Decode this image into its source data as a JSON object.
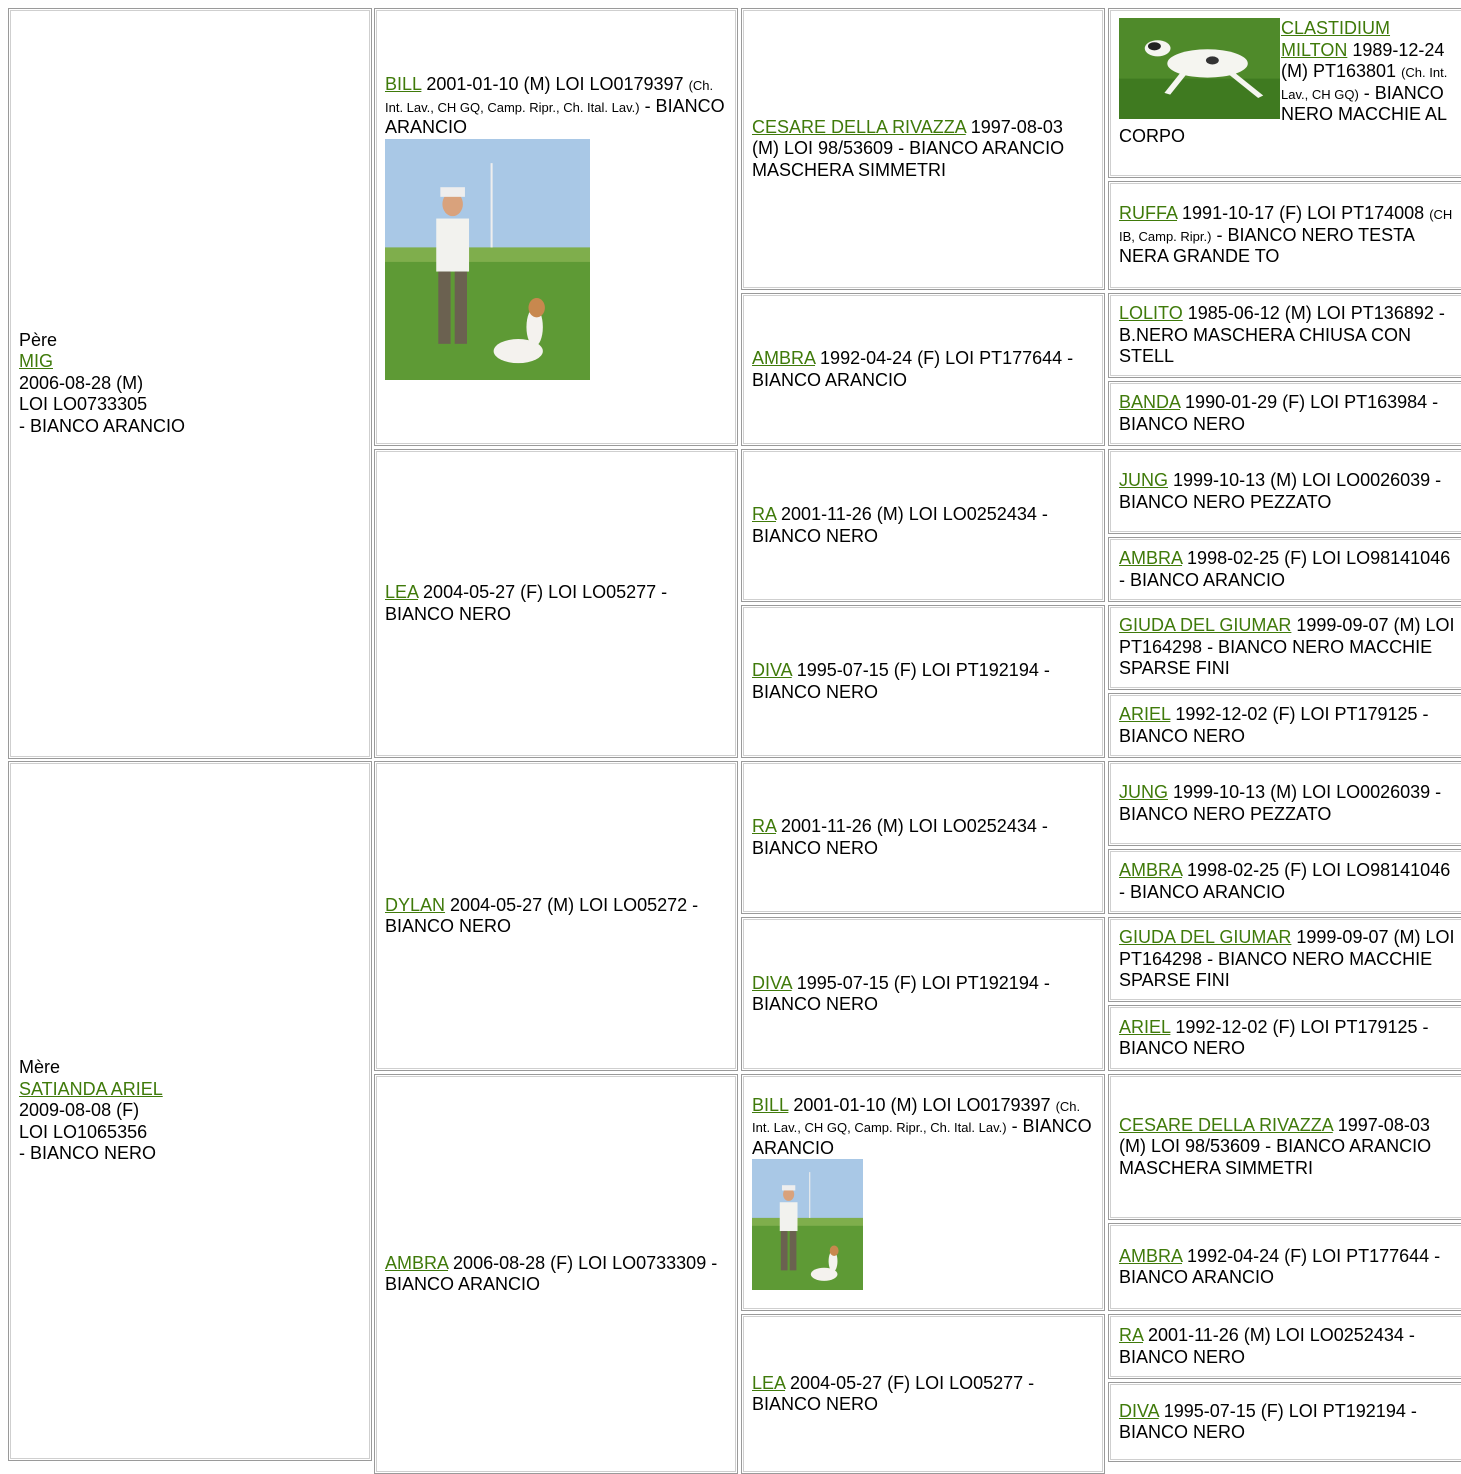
{
  "sire": {
    "label": "Père",
    "name": "MIG",
    "lines": [
      "2006-08-28 (M)",
      "LOI LO0733305",
      "- BIANCO ARANCIO"
    ]
  },
  "dam": {
    "label": "Mère",
    "name": "SATIANDA ARIEL",
    "lines": [
      "2009-08-08 (F)",
      "LOI LO1065356",
      "- BIANCO NERO"
    ]
  },
  "cells": [
    {
      "name": "BILL",
      "text": "2001-01-10 (M) LOI LO0179397",
      "titles": "(Ch. Int. Lav., CH GQ, Camp. Ripr., Ch. Ital. Lav.)",
      "tail": "- BIANCO ARANCIO"
    },
    {
      "name": "LEA",
      "text": "2004-05-27 (F) LOI LO05277 - BIANCO NERO"
    },
    {
      "name": "DYLAN",
      "text": "2004-05-27 (M) LOI LO05272 - BIANCO NERO"
    },
    {
      "name": "AMBRA",
      "text": "2006-08-28 (F) LOI LO0733309 - BIANCO ARANCIO"
    },
    {
      "name": "CESARE DELLA RIVAZZA",
      "text": "1997-08-03 (M) LOI 98/53609 - BIANCO ARANCIO MASCHERA SIMMETRI"
    },
    {
      "name": "AMBRA",
      "text": "1992-04-24 (F) LOI PT177644 - BIANCO ARANCIO"
    },
    {
      "name": "RA",
      "text": "2001-11-26 (M) LOI LO0252434 - BIANCO NERO"
    },
    {
      "name": "DIVA",
      "text": "1995-07-15 (F) LOI PT192194 - BIANCO NERO"
    },
    {
      "name": "RA",
      "text": "2001-11-26 (M) LOI LO0252434 - BIANCO NERO"
    },
    {
      "name": "DIVA",
      "text": "1995-07-15 (F) LOI PT192194 - BIANCO NERO"
    },
    {
      "name": "BILL",
      "text": "2001-01-10 (M) LOI LO0179397",
      "titles": "(Ch. Int. Lav., CH GQ, Camp. Ripr., Ch. Ital. Lav.)",
      "tail": "- BIANCO ARANCIO"
    },
    {
      "name": "LEA",
      "text": "2004-05-27 (F) LOI LO05277 - BIANCO NERO"
    },
    {
      "name": "CLASTIDIUM MILTON",
      "text": "1989-12-24 (M) PT163801",
      "titles": "(Ch. Int. Lav., CH GQ)",
      "tail": "- BIANCO NERO MACCHIE AL CORPO"
    },
    {
      "name": "RUFFA",
      "text": "1991-10-17 (F) LOI PT174008",
      "titles": "(CH IB, Camp. Ripr.)",
      "tail": "- BIANCO NERO TESTA NERA GRANDE TO"
    },
    {
      "name": "LOLITO",
      "text": "1985-06-12 (M) LOI PT136892 - B.NERO MASCHERA CHIUSA CON STELL"
    },
    {
      "name": "BANDA",
      "text": "1990-01-29 (F) LOI PT163984 - BIANCO NERO"
    },
    {
      "name": "JUNG",
      "text": "1999-10-13 (M) LOI LO0026039 - BIANCO NERO PEZZATO"
    },
    {
      "name": "AMBRA",
      "text": "1998-02-25 (F) LOI LO98141046 - BIANCO ARANCIO"
    },
    {
      "name": "GIUDA DEL GIUMAR",
      "text": "1999-09-07 (M) LOI PT164298 - BIANCO NERO MACCHIE SPARSE FINI"
    },
    {
      "name": "ARIEL",
      "text": "1992-12-02 (F) LOI PT179125 - BIANCO NERO"
    },
    {
      "name": "JUNG",
      "text": "1999-10-13 (M) LOI LO0026039 - BIANCO NERO PEZZATO"
    },
    {
      "name": "AMBRA",
      "text": "1998-02-25 (F) LOI LO98141046 - BIANCO ARANCIO"
    },
    {
      "name": "GIUDA DEL GIUMAR",
      "text": "1999-09-07 (M) LOI PT164298 - BIANCO NERO MACCHIE SPARSE FINI"
    },
    {
      "name": "ARIEL",
      "text": "1992-12-02 (F) LOI PT179125 - BIANCO NERO"
    },
    {
      "name": "CESARE DELLA RIVAZZA",
      "text": "1997-08-03 (M) LOI 98/53609 - BIANCO ARANCIO MASCHERA SIMMETRI"
    },
    {
      "name": "AMBRA",
      "text": "1992-04-24 (F) LOI PT177644 - BIANCO ARANCIO"
    },
    {
      "name": "RA",
      "text": "2001-11-26 (M) LOI LO0252434 - BIANCO NERO"
    },
    {
      "name": "DIVA",
      "text": "1995-07-15 (F) LOI PT192194 - BIANCO NERO"
    }
  ]
}
